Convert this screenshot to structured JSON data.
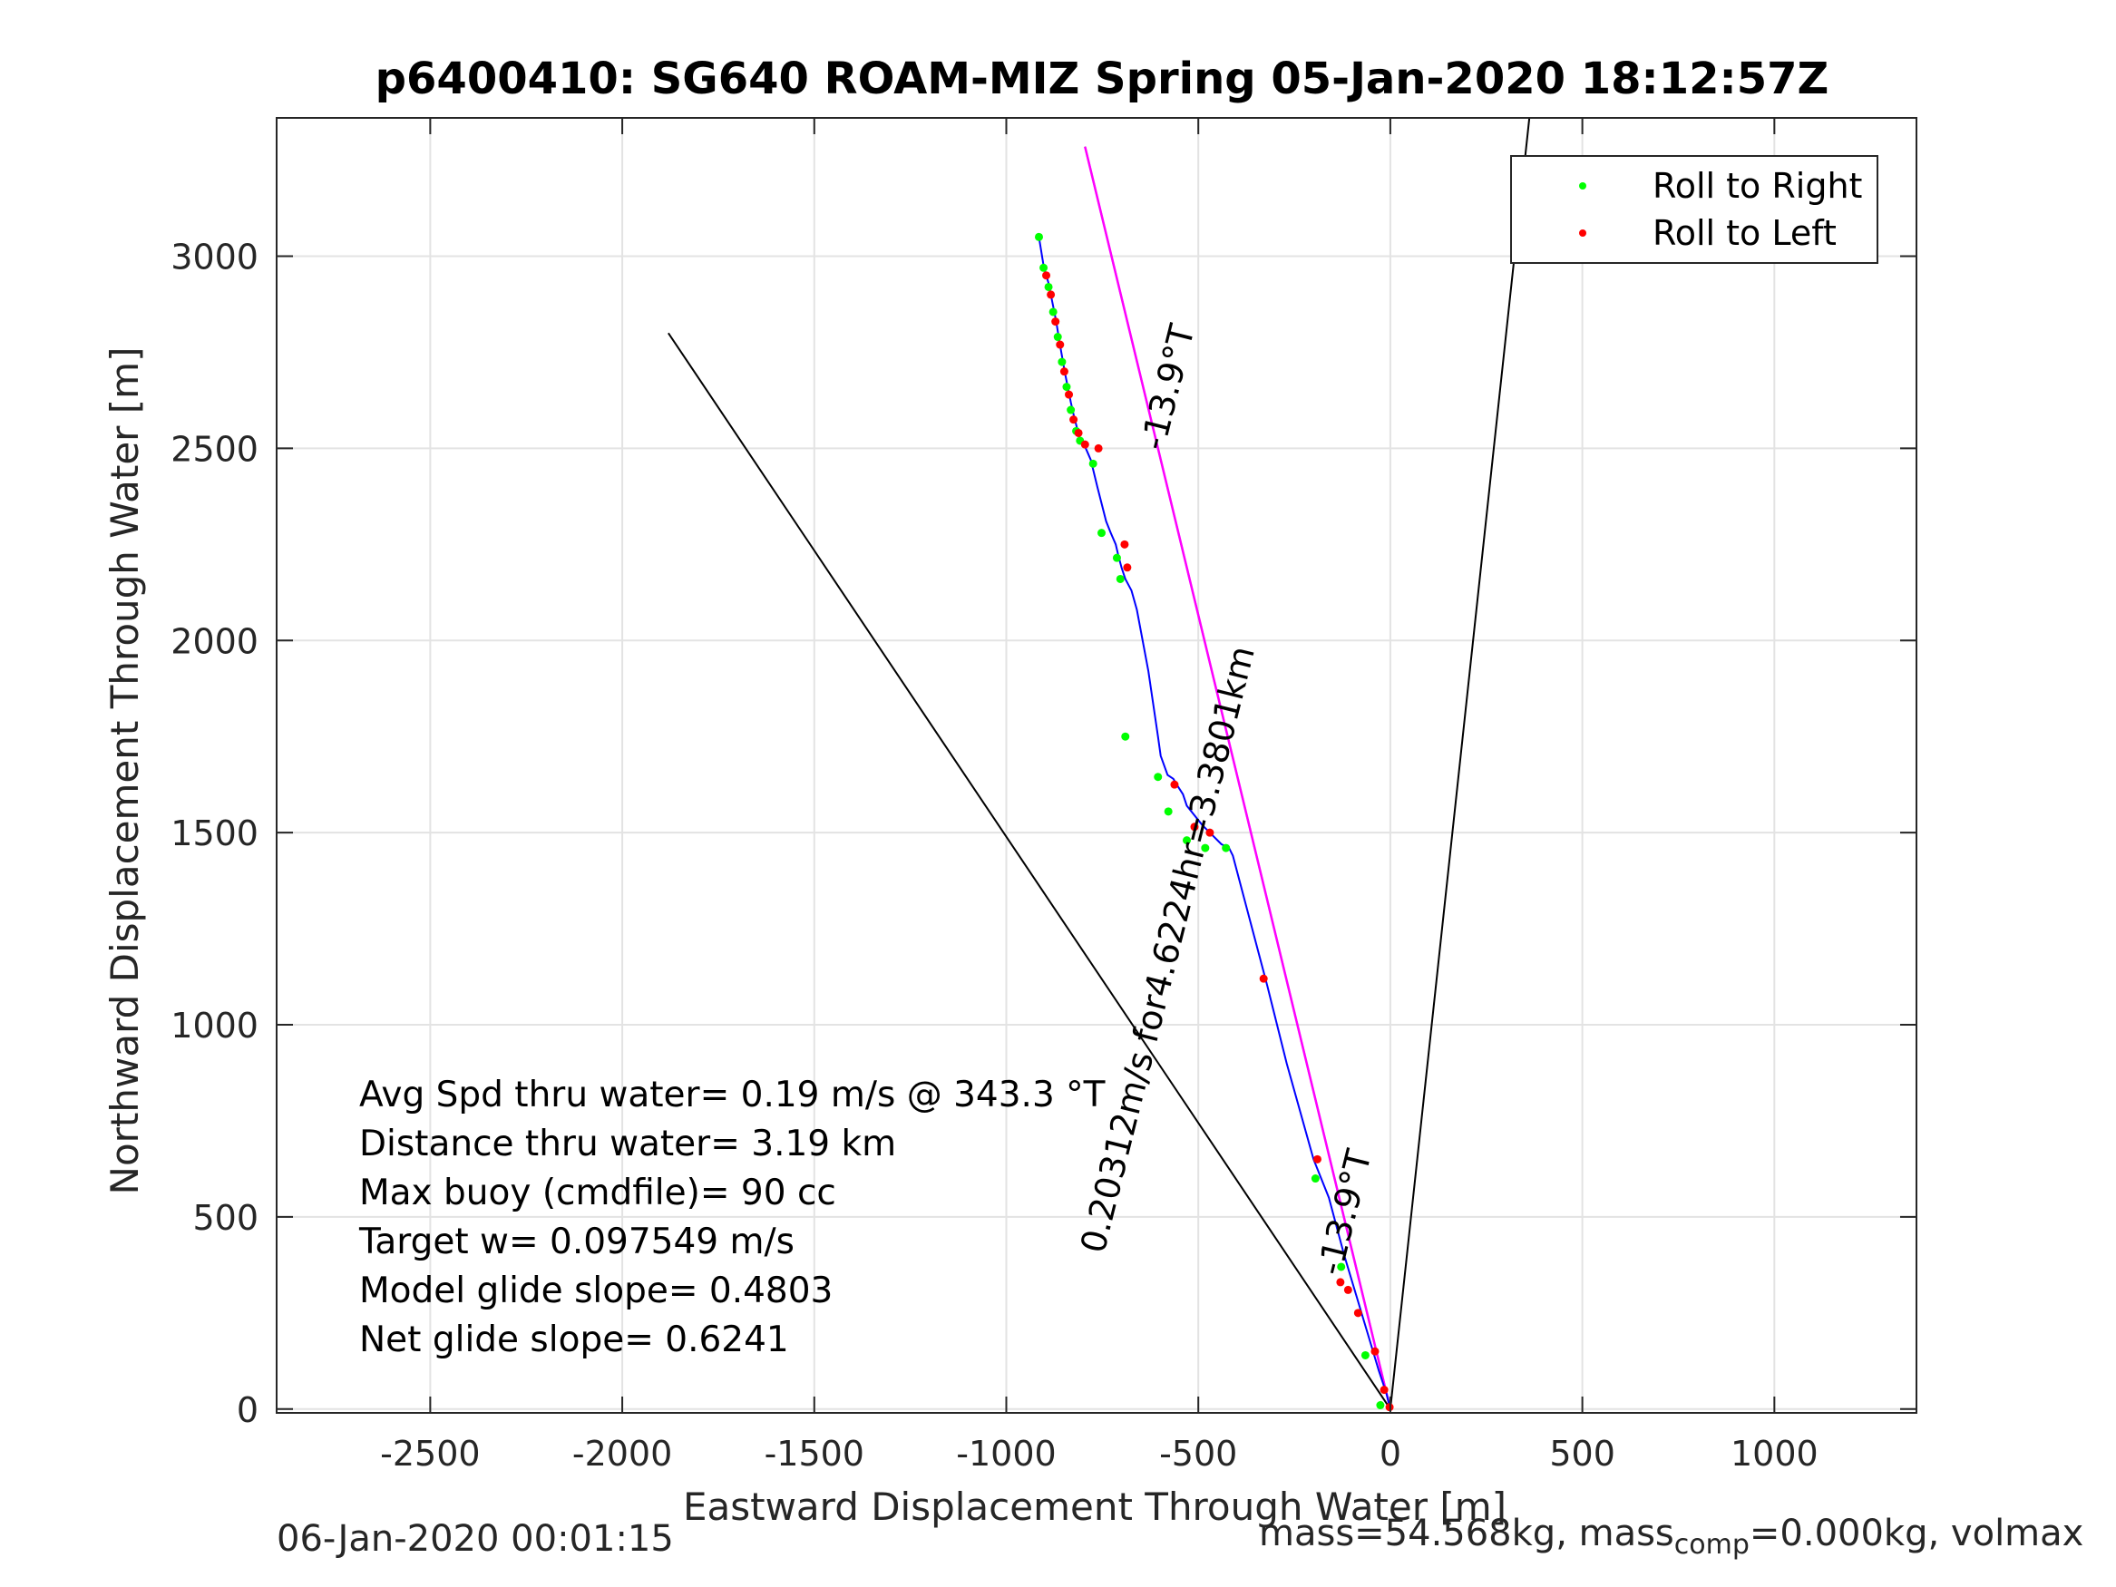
{
  "chart_data": {
    "type": "line",
    "title": "p6400410: SG640 ROAM-MIZ Spring 05-Jan-2020 18:12:57Z",
    "xlabel": "Eastward Displacement Through Water [m]",
    "ylabel": "Northward Displacement Through Water [m]",
    "xlim": [
      -2900,
      1370
    ],
    "ylim": [
      -10,
      3360
    ],
    "xticks": [
      -2500,
      -2000,
      -1500,
      -1000,
      -500,
      0,
      500,
      1000
    ],
    "yticks": [
      0,
      500,
      1000,
      1500,
      2000,
      2500,
      3000
    ],
    "grid": true,
    "legend": {
      "position": "top-right",
      "entries": [
        "Roll to Right",
        "Roll to Left"
      ]
    },
    "colors": {
      "track": "#0000ff",
      "roll_right": "#00ff00",
      "roll_left": "#ff0000",
      "heading_line": "#ff00ff",
      "reference_lines": "#000000"
    },
    "series": [
      {
        "name": "track",
        "x": [
          -915,
          -902,
          -890,
          -880,
          -870,
          -862,
          -855,
          -848,
          -840,
          -832,
          -823,
          -815,
          -806,
          -800,
          -793,
          -780,
          -763,
          -740,
          -728,
          -715,
          -708,
          -700,
          -690,
          -674,
          -660,
          -630,
          -605,
          -598,
          -580,
          -565,
          -553,
          -540,
          -530,
          -490,
          -470,
          -440,
          -420,
          -410,
          -320,
          -270,
          -200,
          -160,
          -120,
          -90,
          -60,
          -30,
          -10,
          0
        ],
        "y": [
          3050,
          2970,
          2930,
          2880,
          2830,
          2780,
          2740,
          2700,
          2660,
          2620,
          2580,
          2550,
          2520,
          2510,
          2500,
          2470,
          2400,
          2310,
          2280,
          2250,
          2220,
          2190,
          2160,
          2130,
          2080,
          1920,
          1750,
          1700,
          1650,
          1640,
          1620,
          1600,
          1570,
          1520,
          1500,
          1470,
          1460,
          1440,
          1100,
          900,
          650,
          550,
          400,
          300,
          200,
          100,
          40,
          0
        ]
      },
      {
        "name": "Roll to Right",
        "x": [
          -915,
          -903,
          -890,
          -878,
          -866,
          -855,
          -843,
          -832,
          -818,
          -808,
          -774,
          -752,
          -712,
          -703,
          -690,
          -605,
          -578,
          -530,
          -482,
          -428,
          -195,
          -128,
          -65,
          -26
        ],
        "y": [
          3050,
          2970,
          2920,
          2855,
          2790,
          2725,
          2660,
          2600,
          2545,
          2520,
          2460,
          2280,
          2215,
          2160,
          1750,
          1645,
          1555,
          1480,
          1460,
          1460,
          600,
          370,
          140,
          10
        ]
      },
      {
        "name": "Roll to Left",
        "x": [
          -896,
          -884,
          -872,
          -860,
          -849,
          -837,
          -825,
          -812,
          -795,
          -760,
          -692,
          -685,
          -562,
          -510,
          -470,
          -330,
          -190,
          -130,
          -110,
          -84,
          -40,
          -16,
          -2
        ],
        "y": [
          2950,
          2900,
          2830,
          2770,
          2700,
          2640,
          2575,
          2540,
          2510,
          2500,
          2250,
          2190,
          1625,
          1515,
          1500,
          1120,
          650,
          330,
          310,
          250,
          150,
          50,
          5
        ]
      },
      {
        "name": "heading line",
        "x": [
          -795,
          0
        ],
        "y": [
          3285,
          0
        ]
      },
      {
        "name": "reference line 1",
        "x": [
          -1880,
          0
        ],
        "y": [
          2800,
          0
        ]
      },
      {
        "name": "reference line 2",
        "x": [
          -795,
          0
        ],
        "y": [
          3285,
          0
        ]
      },
      {
        "name": "reference line 3",
        "x": [
          362,
          0
        ],
        "y": [
          3360,
          0
        ]
      }
    ],
    "annotations": {
      "heading_top": "-13.9°T",
      "heading_bottom": "-13.9°T",
      "along_line": "0.20312m/s for4.6224hr=3.3801km",
      "stats": [
        "Avg Spd thru water=  0.19 m/s @ 343.3 °T",
        "Distance thru water=  3.19 km",
        "Max buoy (cmdfile)= 90 cc",
        "Target w= 0.097549 m/s",
        "Model glide slope= 0.4803",
        "Net glide slope= 0.6241"
      ]
    }
  },
  "footer": {
    "date": "06-Jan-2020 00:01:15",
    "mass_prefix": "mass=54.568kg, mass",
    "mass_sub": "comp",
    "mass_suffix": "=0.000kg, volmax"
  }
}
